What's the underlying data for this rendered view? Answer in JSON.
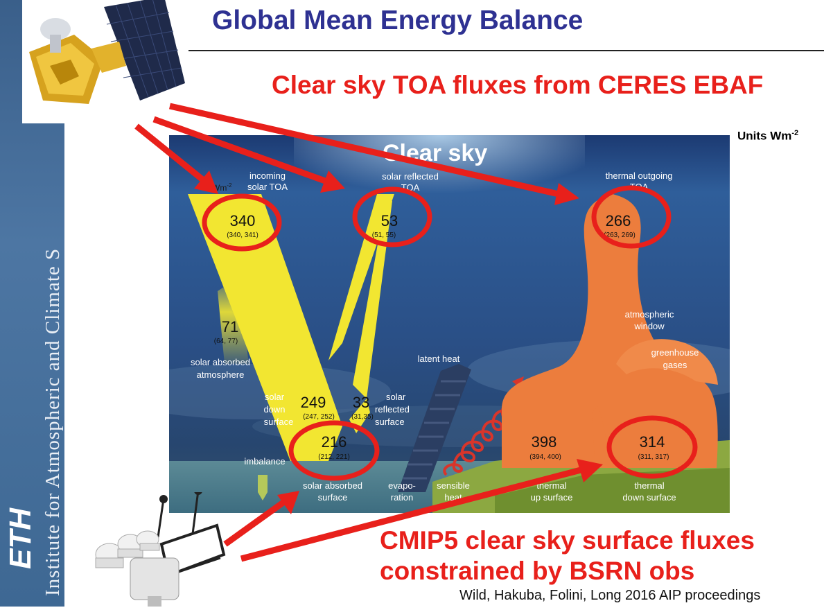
{
  "slide": {
    "title": "Global Mean Energy Balance",
    "subtitle_top": "Clear sky TOA fluxes from CERES EBAF",
    "units_base": "Units Wm",
    "units_exp": "-2",
    "subtitle_bottom_line1": "CMIP5 clear sky surface fluxes",
    "subtitle_bottom_line2": "constrained by BSRN obs",
    "credit": "Wild, Hakuba, Folini, Long 2016 AIP proceedings",
    "sidebar_text": "Institute for Atmospheric and Climate S",
    "logo_text": "ETH"
  },
  "diagram": {
    "title": "Clear sky",
    "unit_label": "Wm",
    "unit_exp": "-2",
    "labels": {
      "incoming_l1": "incoming",
      "incoming_l2": "solar TOA",
      "solar_reflected_toa_l1": "solar reflected",
      "solar_reflected_toa_l2": "TOA",
      "thermal_outgoing_l1": "thermal outgoing",
      "thermal_outgoing_l2": "TOA",
      "solar_absorbed_atm_l1": "solar absorbed",
      "solar_absorbed_atm_l2": "atmosphere",
      "atmospheric_window_l1": "atmospheric",
      "atmospheric_window_l2": "window",
      "greenhouse_l1": "greenhouse",
      "greenhouse_l2": "gases",
      "latent_heat": "latent heat",
      "solar_down_l1": "solar",
      "solar_down_l2": "down",
      "solar_down_l3": "surface",
      "solar_reflected_surface_l1": "solar",
      "solar_reflected_surface_l2": "reflected",
      "solar_reflected_surface_l3": "surface",
      "imbalance": "imbalance",
      "solar_absorbed_surface_l1": "solar absorbed",
      "solar_absorbed_surface_l2": "surface",
      "evaporation_l1": "evapo-",
      "evaporation_l2": "ration",
      "sensible_heat_l1": "sensible",
      "sensible_heat_l2": "heat",
      "thermal_up_l1": "thermal",
      "thermal_up_l2": "up surface",
      "thermal_down_l1": "thermal",
      "thermal_down_l2": "down surface"
    },
    "values": {
      "incoming_solar_toa": {
        "value": "340",
        "range": "(340, 341)"
      },
      "solar_reflected_toa": {
        "value": "53",
        "range": "(51, 55)"
      },
      "thermal_outgoing_toa": {
        "value": "266",
        "range": "(263, 269)"
      },
      "solar_absorbed_atmosphere": {
        "value": "71",
        "range": "(64, 77)"
      },
      "solar_down_surface": {
        "value": "249",
        "range": "(247, 252)"
      },
      "solar_reflected_surface": {
        "value": "33",
        "range": "(31,35)"
      },
      "solar_absorbed_surface": {
        "value": "216",
        "range": "(212, 221)"
      },
      "thermal_up_surface": {
        "value": "398",
        "range": "(394, 400)"
      },
      "thermal_down_surface": {
        "value": "314",
        "range": "(311, 317)"
      }
    }
  },
  "colors": {
    "title_blue": "#2e3192",
    "highlight_red": "#e8201b",
    "solar_yellow": "#f2e631",
    "thermal_orange": "#ec7d3d"
  }
}
